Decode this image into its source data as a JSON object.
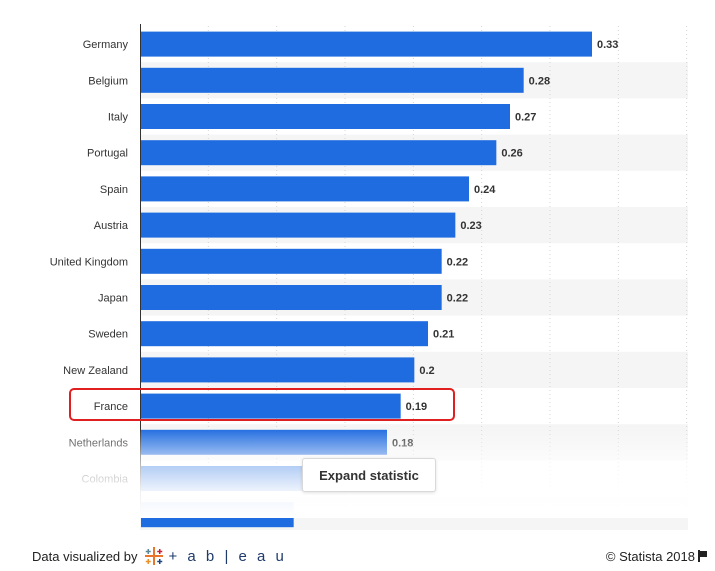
{
  "chart_data": {
    "type": "bar",
    "orientation": "horizontal",
    "categories": [
      "Germany",
      "Belgium",
      "Italy",
      "Portugal",
      "Spain",
      "Austria",
      "United Kingdom",
      "Japan",
      "Sweden",
      "New Zealand",
      "France",
      "Netherlands",
      "Colombia"
    ],
    "values": [
      0.33,
      0.28,
      0.27,
      0.26,
      0.24,
      0.23,
      0.22,
      0.22,
      0.21,
      0.2,
      0.19,
      0.18,
      0.12
    ],
    "value_labels": [
      "0.33",
      "0.28",
      "0.27",
      "0.26",
      "0.24",
      "0.23",
      "0.22",
      "0.22",
      "0.21",
      "0.2",
      "0.19",
      "0.18",
      ""
    ],
    "xlim": [
      0,
      0.4
    ],
    "highlighted_category": "France",
    "grid": true,
    "bar_color": "#1f6be0",
    "highlight_color": "#e02020"
  },
  "expand_button": {
    "label": "Expand statistic"
  },
  "footer": {
    "visualized_by": "Data visualized by",
    "tableau_word": "+ a b | e a u",
    "copyright": "© Statista 2018"
  }
}
